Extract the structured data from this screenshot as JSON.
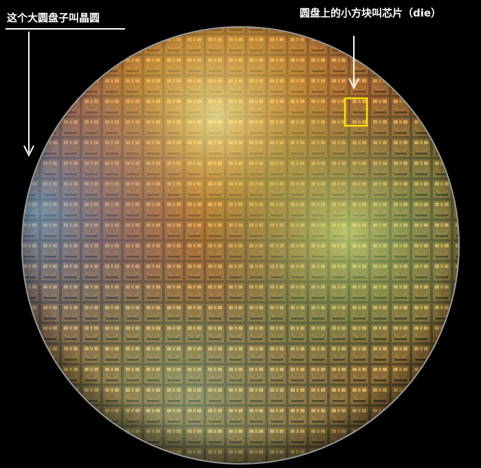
{
  "annotations": {
    "wafer_label": "这个大圆盘子叫晶圆",
    "die_label": "圆盘上的小方块叫芯片（die）"
  }
}
